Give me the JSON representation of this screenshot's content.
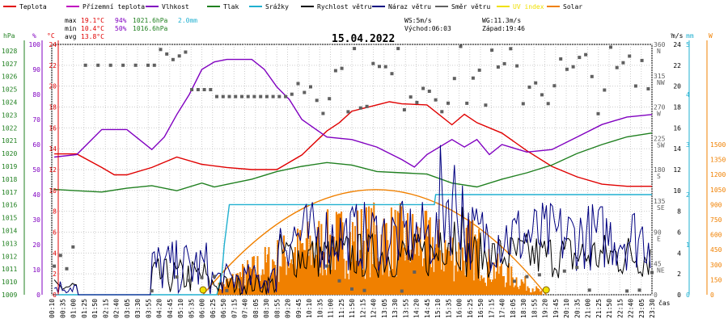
{
  "chart_data": {
    "type": "line",
    "title": "15.04.2022",
    "legend": [
      {
        "label": "Teplota",
        "color": "#e00000"
      },
      {
        "label": "Přízemní teplota",
        "color": "#c000c0"
      },
      {
        "label": "Vlhkost",
        "color": "#8000c0"
      },
      {
        "label": "Tlak",
        "color": "#208020"
      },
      {
        "label": "Srážky",
        "color": "#20b0d0"
      },
      {
        "label": "Rychlost větru",
        "color": "#000000"
      },
      {
        "label": "Náraz větru",
        "color": "#000080"
      },
      {
        "label": "Směr větru",
        "color": "#606060"
      },
      {
        "label": "UV index",
        "color": "#f0e000"
      },
      {
        "label": "Solar",
        "color": "#f08000"
      }
    ],
    "stats": {
      "max_label": "max",
      "max_temp": "19.1°C",
      "max_hum": "94%",
      "max_press": "1021.6hPa",
      "rain_total": "2.0mm",
      "min_label": "min",
      "min_temp": "10.4°C",
      "min_hum": "50%",
      "min_press": "1016.6hPa",
      "avg_label": "avg",
      "avg_temp": "13.8°C"
    },
    "info": {
      "ws": "WS:5m/s",
      "wg": "WG:11.3m/s",
      "sunrise": "Východ:06:03",
      "sunset": "Západ:19:46"
    },
    "axes": {
      "hpa_unit": "hPa",
      "pct_unit": "%",
      "degc_unit": "°C",
      "dir_unit": "°",
      "ms_unit": "m/s",
      "mm_unit": "mm",
      "w_unit": "W",
      "x_unit": "čas",
      "hpa_ticks": [
        "1028",
        "1027",
        "1026",
        "1025",
        "1024",
        "1023",
        "1022",
        "1021",
        "1020",
        "1019",
        "1018",
        "1017",
        "1016",
        "1015",
        "1014",
        "1013",
        "1012",
        "1011",
        "1010",
        "1009"
      ],
      "hpa_range": [
        1009,
        1028.5
      ],
      "pct_ticks": [
        "100",
        "90",
        "80",
        "70",
        "60",
        "50",
        "40",
        "30",
        "20",
        "10",
        "0"
      ],
      "degc_ticks": [
        "24",
        "22",
        "20",
        "18",
        "16",
        "14",
        "12",
        "10",
        "8",
        "6",
        "4",
        "2",
        "0"
      ],
      "dir_ticks": [
        [
          "360",
          "N"
        ],
        [
          "315",
          "NW"
        ],
        [
          "270",
          "W"
        ],
        [
          "225",
          "SW"
        ],
        [
          "180",
          "S"
        ],
        [
          "135",
          "SE"
        ],
        [
          "90",
          "E"
        ],
        [
          "45",
          "NE"
        ],
        [
          "0",
          ""
        ]
      ],
      "ms_ticks": [
        "24",
        "22",
        "20",
        "18",
        "16",
        "14",
        "12",
        "10",
        "8",
        "6",
        "4",
        "2",
        "0"
      ],
      "mm_ticks": [
        "5",
        "4",
        "3",
        "2",
        "1",
        "0"
      ],
      "w_ticks": [
        "1500",
        "1350",
        "1200",
        "1050",
        "900",
        "750",
        "600",
        "450",
        "300",
        "150",
        "0"
      ],
      "time_labels": [
        "00:10",
        "00:35",
        "01:00",
        "01:25",
        "01:50",
        "02:15",
        "02:40",
        "03:05",
        "03:30",
        "03:55",
        "04:20",
        "04:45",
        "05:10",
        "05:35",
        "06:00",
        "06:25",
        "06:50",
        "07:15",
        "07:40",
        "08:05",
        "08:30",
        "08:55",
        "09:20",
        "09:45",
        "10:10",
        "10:35",
        "11:00",
        "11:25",
        "11:50",
        "12:15",
        "12:40",
        "13:05",
        "13:30",
        "13:55",
        "14:20",
        "14:45",
        "15:10",
        "15:35",
        "16:00",
        "16:25",
        "16:50",
        "17:15",
        "17:40",
        "18:05",
        "18:30",
        "18:55",
        "19:20",
        "19:45",
        "20:10",
        "20:35",
        "21:00",
        "21:25",
        "21:50",
        "22:15",
        "22:40",
        "23:05",
        "23:30"
      ]
    },
    "series": [
      {
        "name": "Teplota",
        "unit": "°C",
        "x": [
          0.1,
          1,
          2,
          2.5,
          3,
          4,
          5,
          6,
          7,
          8,
          9,
          10,
          11,
          11.5,
          12,
          12.5,
          13,
          13.5,
          14,
          15,
          16,
          16.5,
          17,
          18,
          19,
          20,
          21,
          22,
          23,
          24
        ],
        "y": [
          13.5,
          13.5,
          12.2,
          11.5,
          11.5,
          12.2,
          13.2,
          12.5,
          12.2,
          12.0,
          12.0,
          13.4,
          15.7,
          16.5,
          17.6,
          17.9,
          18.2,
          18.5,
          18.3,
          18.2,
          16.3,
          17.3,
          16.5,
          15.5,
          13.8,
          12.3,
          11.3,
          10.6,
          10.4,
          10.4
        ]
      },
      {
        "name": "Vlhkost",
        "unit": "%",
        "x": [
          0.1,
          1,
          2,
          3,
          4,
          4.5,
          5,
          5.5,
          6,
          6.5,
          7,
          8,
          8.5,
          9,
          9.5,
          10,
          11,
          12,
          13,
          14,
          14.5,
          15,
          16,
          16.5,
          17,
          17.5,
          18,
          19,
          20,
          21,
          22,
          23,
          24
        ],
        "y": [
          55,
          56,
          66,
          66,
          58,
          63,
          72,
          80,
          90,
          93,
          94,
          94,
          90,
          83,
          78,
          70,
          63,
          62,
          59,
          54,
          51,
          56,
          62,
          59,
          62,
          56,
          60,
          57,
          58,
          63,
          68,
          71,
          72
        ]
      },
      {
        "name": "Tlak",
        "unit": "hPa",
        "x": [
          0.1,
          1,
          2,
          3,
          4,
          5,
          6,
          6.5,
          7,
          8,
          9,
          10,
          11,
          12,
          13,
          14,
          15,
          16,
          17,
          18,
          19,
          20,
          21,
          22,
          23,
          24
        ],
        "y": [
          1017.2,
          1017.1,
          1017.0,
          1017.3,
          1017.5,
          1017.1,
          1017.7,
          1017.4,
          1017.6,
          1018.0,
          1018.6,
          1019.0,
          1019.3,
          1019.1,
          1018.6,
          1018.5,
          1018.4,
          1017.7,
          1017.4,
          1018.0,
          1018.5,
          1019.1,
          1020.0,
          1020.7,
          1021.3,
          1021.6
        ]
      },
      {
        "name": "Srážky",
        "unit": "mm",
        "x": [
          0.1,
          6.6,
          6.8,
          6.9,
          7.0,
          7.1,
          15.3,
          15.35,
          24
        ],
        "y": [
          0,
          0,
          0.4,
          1.0,
          1.4,
          1.8,
          1.8,
          2.0,
          2.0
        ]
      },
      {
        "name": "Solar",
        "unit": "W",
        "x": [
          6.05,
          13.0,
          19.77
        ],
        "y": [
          0,
          1050,
          0
        ]
      }
    ]
  }
}
